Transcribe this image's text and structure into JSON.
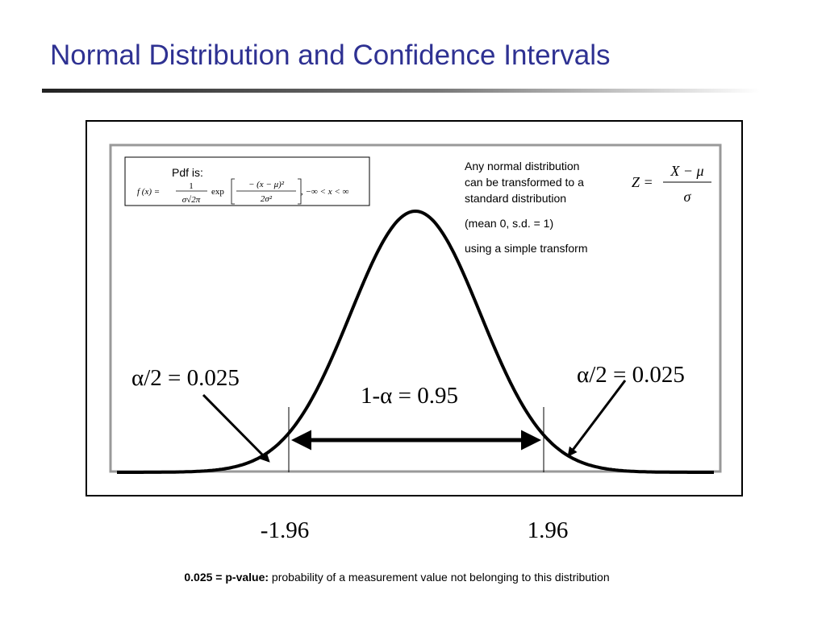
{
  "title": "Normal Distribution and Confidence Intervals",
  "pdf_box": {
    "label": "Pdf is:",
    "formula": {
      "lhs": "f (x) =",
      "coef_numerator": "1",
      "coef_denominator": "σ√2π",
      "function": "exp",
      "exp_numerator": "− (x − μ)²",
      "exp_denominator": "2σ²",
      "domain": ", −∞ < x < ∞"
    }
  },
  "transform_note": {
    "lines": [
      "Any normal distribution",
      "can be transformed to a",
      "standard distribution"
    ],
    "mean_sd": "(mean 0, s.d. = 1)",
    "method": "using a simple transform"
  },
  "z_formula": {
    "lhs": "Z =",
    "numerator": "X − μ",
    "denominator": "σ"
  },
  "left_tail": "α/2 = 0.025",
  "right_tail": "α/2 = 0.025",
  "center": "1-α = 0.95",
  "critical_values": [
    "-1.96",
    "1.96"
  ],
  "footnote": {
    "term": "0.025 = p-value:",
    "definition": "probability of a measurement value not belonging to this distribution"
  }
}
